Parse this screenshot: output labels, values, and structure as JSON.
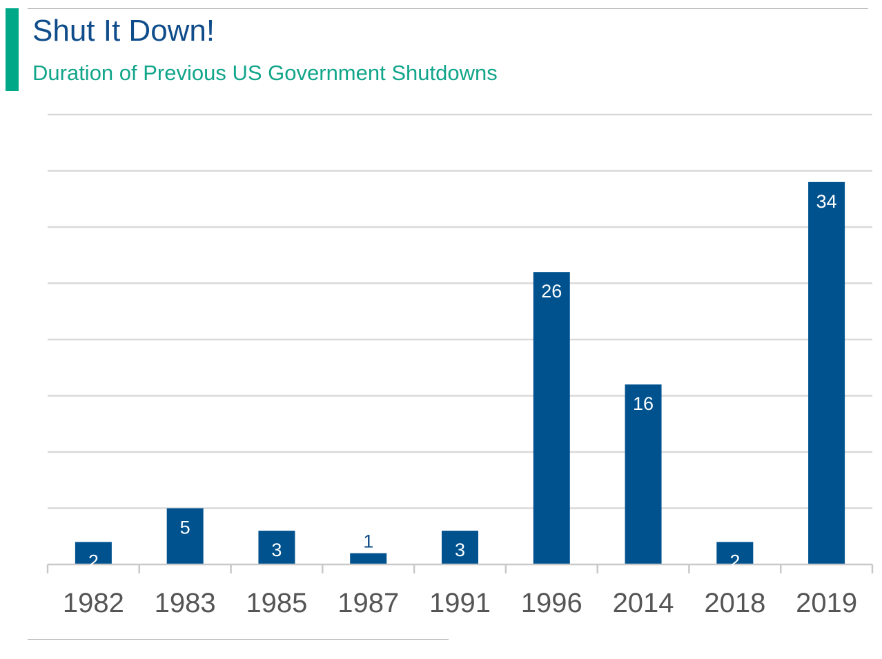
{
  "header": {
    "title": "Shut It Down!",
    "subtitle": "Duration of Previous US Government Shutdowns"
  },
  "colors": {
    "accent": "#00a887",
    "title": "#0f4c8a",
    "subtitle": "#11a58a",
    "bar": "#00528f",
    "grid": "#d9d9d9",
    "tick_label": "#555555"
  },
  "chart_data": {
    "type": "bar",
    "title": "Shut It Down!",
    "subtitle": "Duration of Previous US Government Shutdowns",
    "categories": [
      "1982",
      "1983",
      "1985",
      "1987",
      "1991",
      "1996",
      "2014",
      "2018",
      "2019"
    ],
    "values": [
      2,
      5,
      3,
      1,
      3,
      26,
      16,
      2,
      34
    ],
    "ylim": [
      0,
      40
    ],
    "grid": true,
    "y_tick_step": 5,
    "y_tick_labels_shown": false,
    "data_labels": true,
    "legend": "none"
  }
}
